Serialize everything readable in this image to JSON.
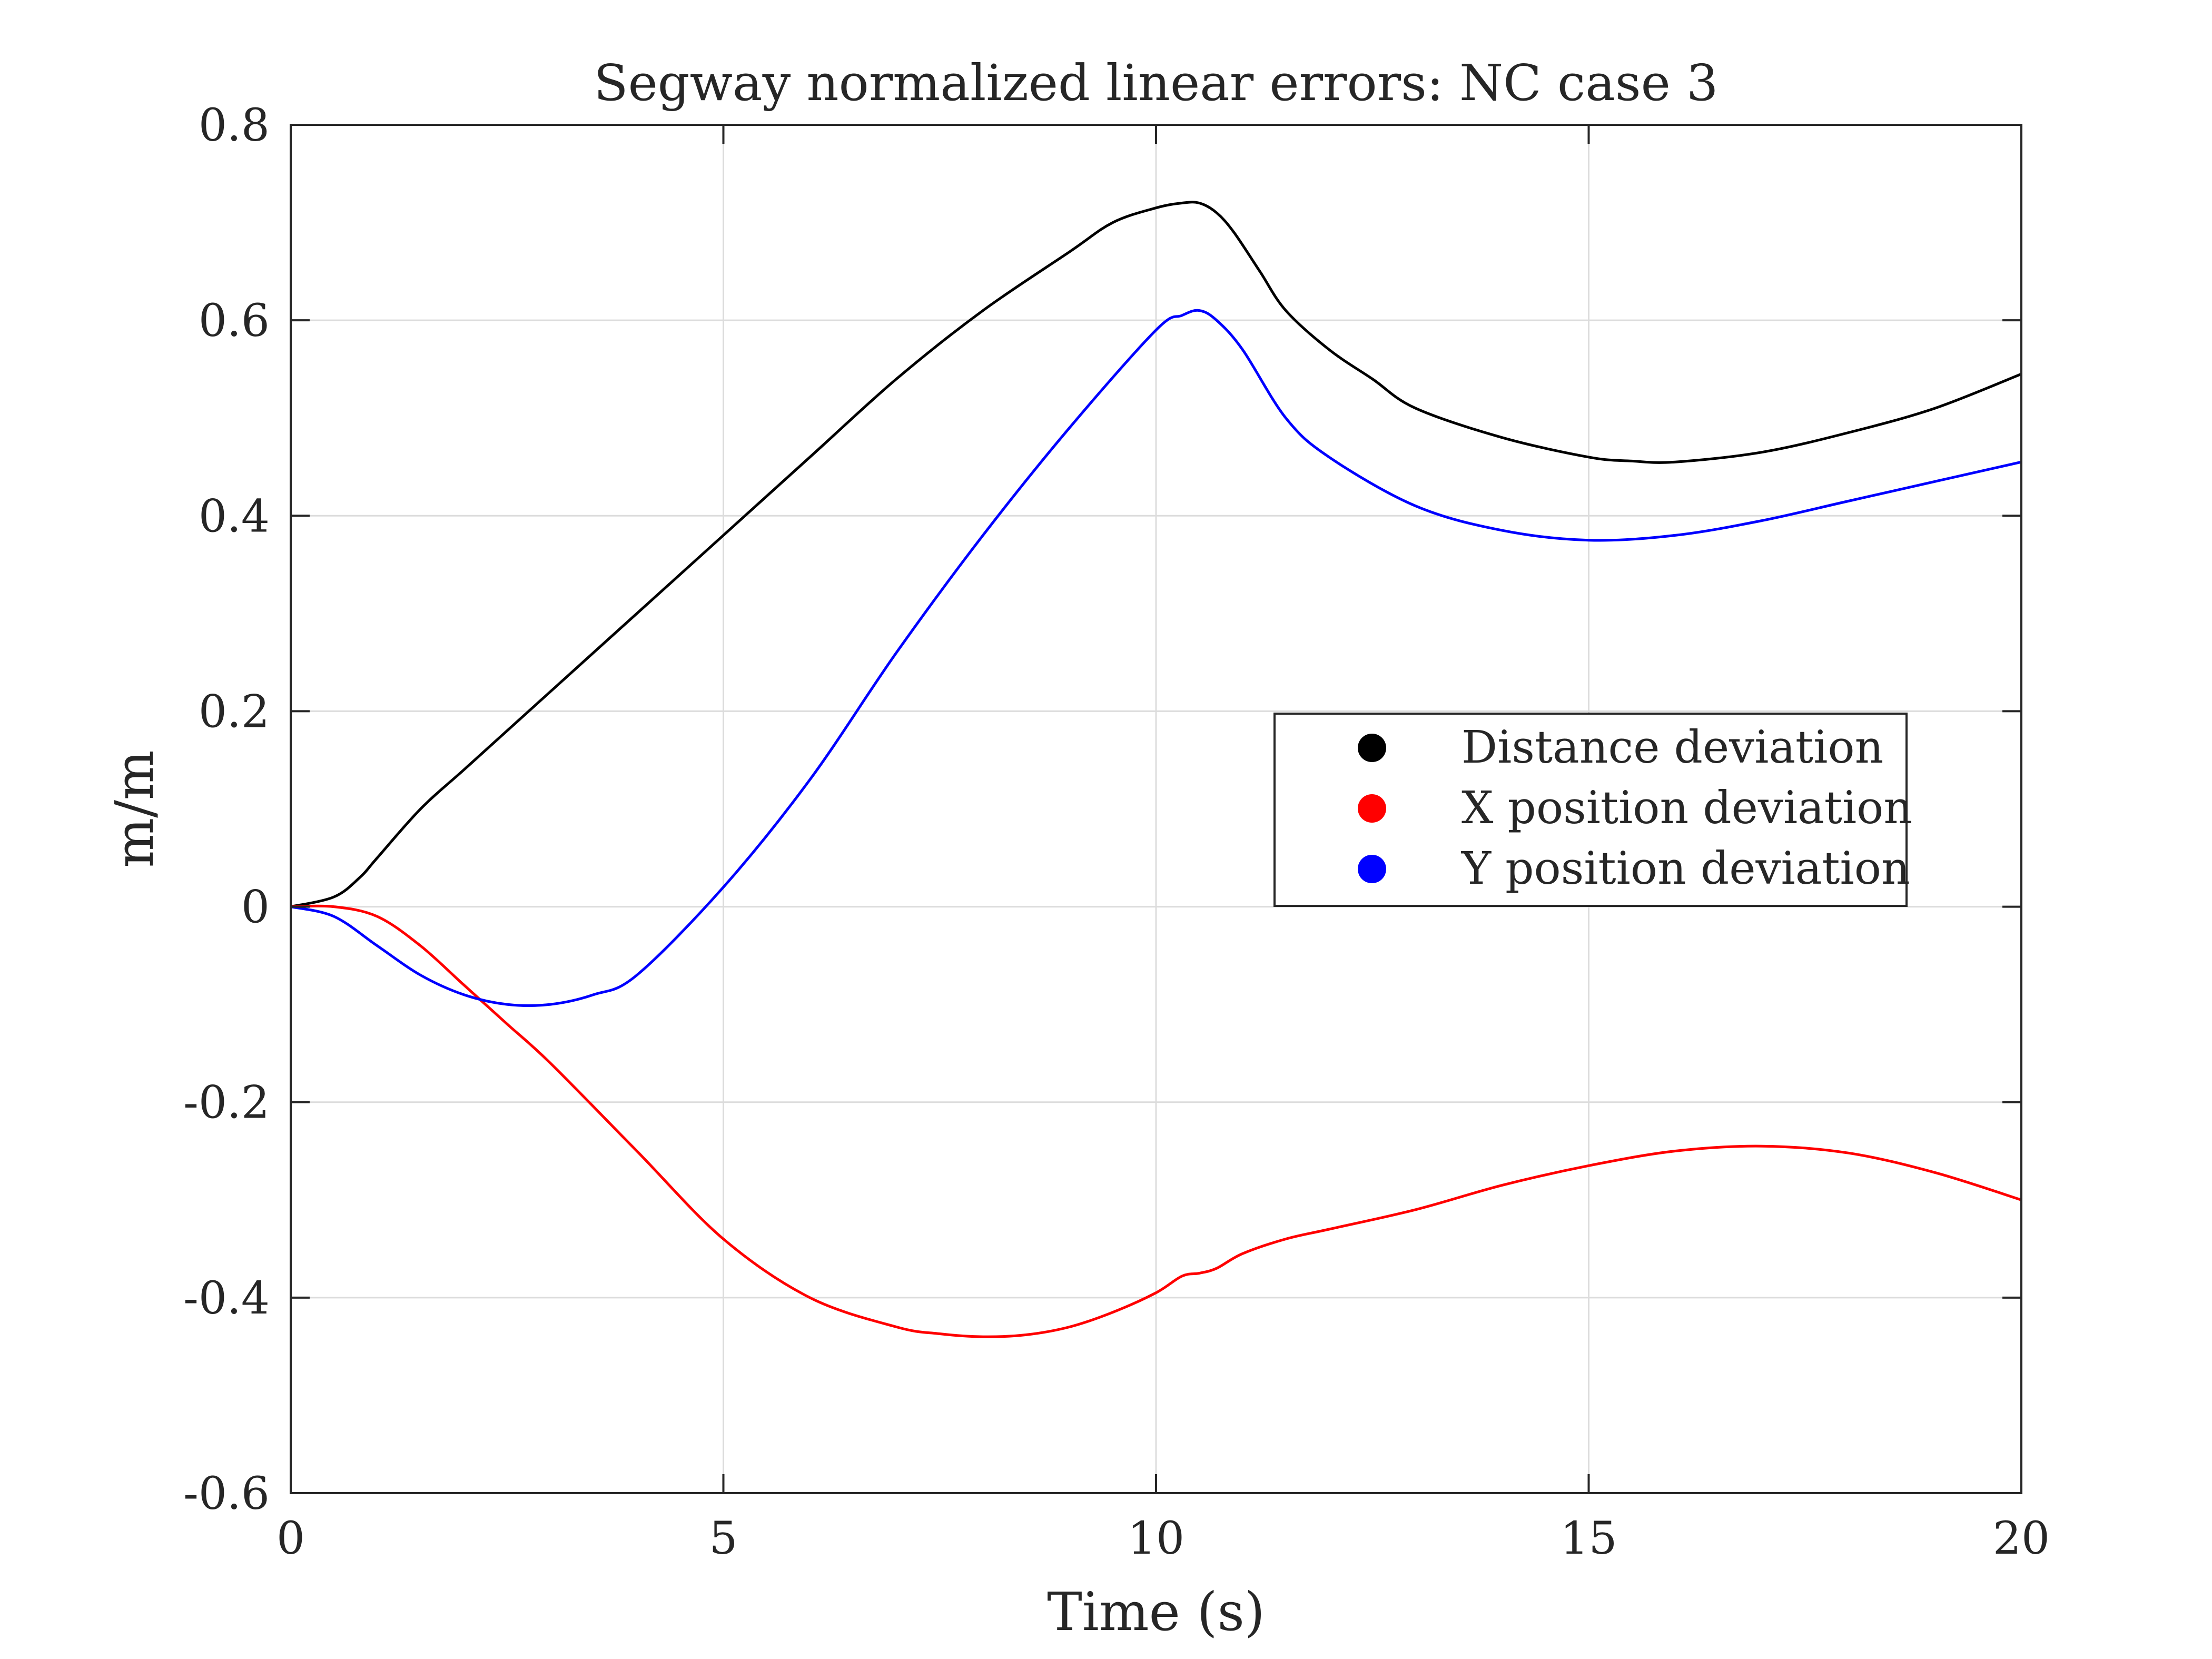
{
  "chart_data": {
    "type": "line",
    "title": "Segway normalized linear errors: NC case 3",
    "xlabel": "Time (s)",
    "ylabel": "m/m",
    "xlim": [
      0,
      20
    ],
    "ylim": [
      -0.6,
      0.8
    ],
    "xticks": [
      0,
      5,
      10,
      15,
      20
    ],
    "xtick_labels": [
      "0",
      "5",
      "10",
      "15",
      "20"
    ],
    "yticks": [
      -0.6,
      -0.4,
      -0.2,
      0,
      0.2,
      0.4,
      0.6,
      0.8
    ],
    "ytick_labels": [
      "-0.6",
      "-0.4",
      "-0.2",
      "0",
      "0.2",
      "0.4",
      "0.6",
      "0.8"
    ],
    "grid": true,
    "legend_position": "center-right",
    "series": [
      {
        "name": "Distance deviation",
        "color": "#000000",
        "x": [
          0,
          0.5,
          0.8,
          1,
          1.5,
          2,
          2.5,
          3,
          4,
          5,
          6,
          7,
          8,
          9,
          9.5,
          10,
          10.3,
          10.5,
          10.7,
          10.9,
          11.2,
          11.5,
          12,
          12.5,
          13,
          14,
          15,
          15.5,
          16,
          17,
          18,
          19,
          20
        ],
        "y": [
          0,
          0.01,
          0.03,
          0.05,
          0.1,
          0.14,
          0.18,
          0.22,
          0.3,
          0.38,
          0.46,
          0.54,
          0.61,
          0.67,
          0.7,
          0.715,
          0.72,
          0.72,
          0.71,
          0.69,
          0.65,
          0.61,
          0.57,
          0.54,
          0.51,
          0.48,
          0.46,
          0.456,
          0.455,
          0.465,
          0.485,
          0.51,
          0.545
        ]
      },
      {
        "name": "X position deviation",
        "color": "#ff0000",
        "x": [
          0,
          0.5,
          1,
          1.5,
          2,
          2.5,
          3,
          4,
          5,
          6,
          7,
          7.5,
          8,
          8.5,
          9,
          9.5,
          10,
          10.3,
          10.5,
          10.7,
          11,
          11.5,
          12,
          13,
          14,
          15,
          16,
          17,
          18,
          19,
          20
        ],
        "y": [
          0,
          0,
          -0.01,
          -0.04,
          -0.08,
          -0.12,
          -0.16,
          -0.25,
          -0.34,
          -0.4,
          -0.43,
          -0.437,
          -0.44,
          -0.438,
          -0.43,
          -0.415,
          -0.395,
          -0.378,
          -0.375,
          -0.37,
          -0.355,
          -0.34,
          -0.33,
          -0.31,
          -0.285,
          -0.265,
          -0.25,
          -0.245,
          -0.252,
          -0.272,
          -0.3
        ]
      },
      {
        "name": "Y position deviation",
        "color": "#0000ff",
        "x": [
          0,
          0.5,
          1,
          1.5,
          2,
          2.5,
          3,
          3.5,
          4,
          5,
          6,
          7,
          8,
          9,
          10,
          10.3,
          10.5,
          10.7,
          11,
          11.5,
          12,
          13,
          14,
          15,
          16,
          17,
          18,
          19,
          20
        ],
        "y": [
          0,
          -0.01,
          -0.04,
          -0.07,
          -0.09,
          -0.1,
          -0.1,
          -0.09,
          -0.07,
          0.02,
          0.13,
          0.26,
          0.38,
          0.49,
          0.59,
          0.605,
          0.61,
          0.6,
          0.57,
          0.5,
          0.46,
          0.41,
          0.385,
          0.375,
          0.38,
          0.395,
          0.415,
          0.435,
          0.455
        ]
      }
    ]
  }
}
